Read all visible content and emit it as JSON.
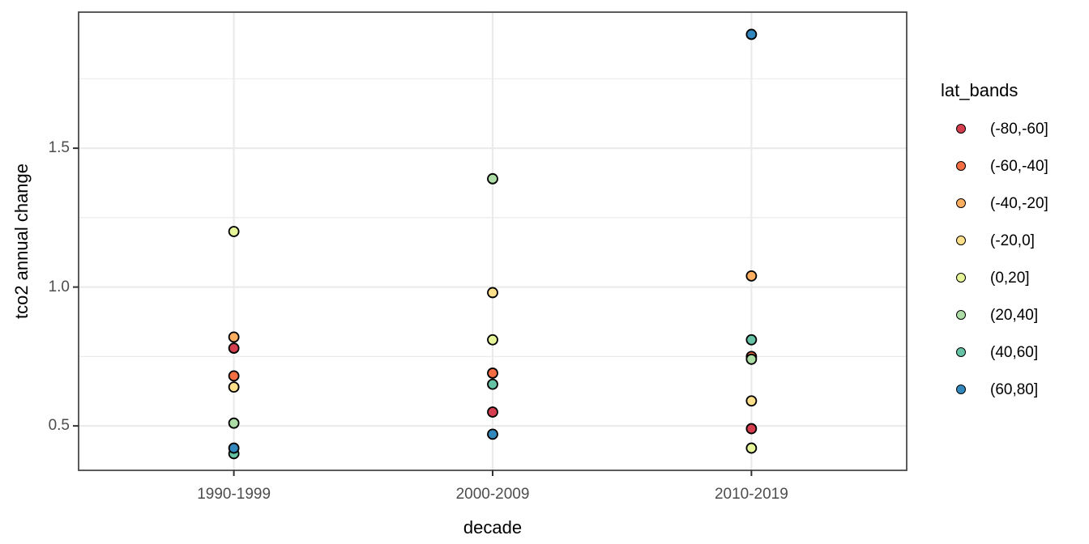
{
  "figure": {
    "background": "#FFFFFF",
    "panel_border_color": "#333333",
    "grid_color": "#EBEBEB",
    "tick_mark_color": "#333333",
    "tick_label_color": "#4D4D4D",
    "point_stroke_color": "#000000"
  },
  "chart_data": {
    "type": "scatter",
    "title": "",
    "xlabel": "decade",
    "ylabel": "tco2 annual change",
    "categories": [
      "1990-1999",
      "2000-2009",
      "2010-2019"
    ],
    "y_ticks": [
      0.5,
      1.0,
      1.5
    ],
    "y_tick_labels": [
      "0.5",
      "1.0",
      "1.5"
    ],
    "y_minor_ticks": [
      0.75,
      1.25,
      1.75
    ],
    "ylim": [
      0.34,
      1.99
    ],
    "grid": true,
    "legend_title": "lat_bands",
    "legend_position": "right",
    "series": [
      {
        "name": "(-80,-60]",
        "color": "#D53E4F",
        "values": [
          0.78,
          0.55,
          0.49
        ]
      },
      {
        "name": "(-60,-40]",
        "color": "#F46D43",
        "values": [
          0.68,
          0.69,
          0.75
        ]
      },
      {
        "name": "(-40,-20]",
        "color": "#FDAE61",
        "values": [
          0.82,
          null,
          1.04
        ]
      },
      {
        "name": "(-20,0]",
        "color": "#FEE08B",
        "values": [
          0.64,
          0.98,
          0.59
        ]
      },
      {
        "name": "(0,20]",
        "color": "#E6F598",
        "values": [
          1.2,
          0.81,
          0.42
        ]
      },
      {
        "name": "(20,40]",
        "color": "#ABDDA4",
        "values": [
          0.51,
          1.39,
          0.74
        ]
      },
      {
        "name": "(40,60]",
        "color": "#66C2A5",
        "values": [
          0.4,
          0.65,
          0.81
        ]
      },
      {
        "name": "(60,80]",
        "color": "#3288BD",
        "values": [
          0.42,
          0.47,
          1.91
        ]
      }
    ]
  }
}
